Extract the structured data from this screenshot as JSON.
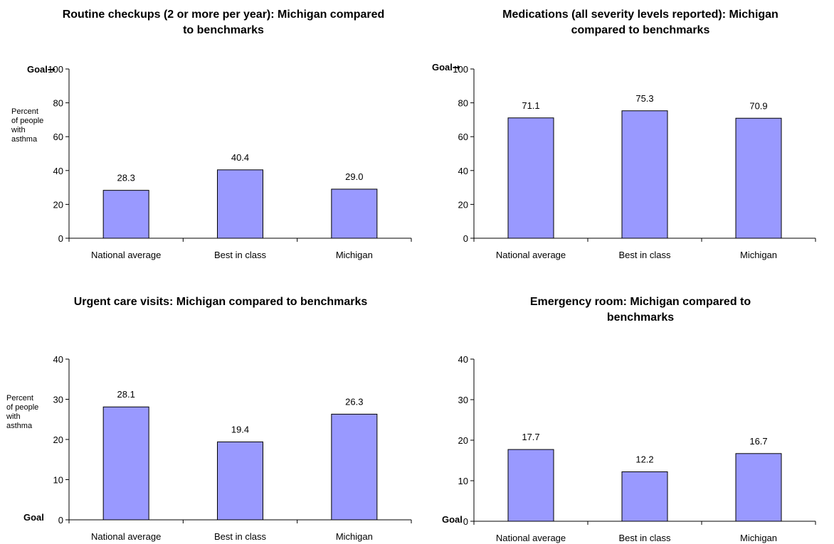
{
  "colors": {
    "bar_fill": "#9999ff",
    "bar_stroke": "#000000",
    "axis": "#000000"
  },
  "goal_arrow_icon": "right-arrow",
  "chart_data": [
    {
      "type": "bar",
      "title": "Routine checkups (2 or more per year): Michigan compared to benchmarks",
      "ylabel": "Percent of people with asthma",
      "goal_label": "Goal",
      "goal_value": 100,
      "categories": [
        "National average",
        "Best in class",
        "Michigan"
      ],
      "values": [
        28.3,
        40.4,
        29.0
      ],
      "value_labels": [
        "28.3",
        "40.4",
        "29.0"
      ],
      "ylim": [
        0,
        100
      ],
      "yticks": [
        "0",
        "20",
        "40",
        "60",
        "80",
        "100"
      ],
      "grid": false,
      "legend": "none"
    },
    {
      "type": "bar",
      "title": "Medications (all severity levels reported): Michigan compared to benchmarks",
      "ylabel": "",
      "goal_label": "Goal",
      "goal_value": 100,
      "categories": [
        "National average",
        "Best in class",
        "Michigan"
      ],
      "values": [
        71.1,
        75.3,
        70.9
      ],
      "value_labels": [
        "71.1",
        "75.3",
        "70.9"
      ],
      "ylim": [
        0,
        100
      ],
      "yticks": [
        "0",
        "20",
        "40",
        "60",
        "80",
        "100"
      ],
      "grid": false,
      "legend": "none"
    },
    {
      "type": "bar",
      "title": "Urgent care visits: Michigan compared to benchmarks",
      "ylabel": "Percent of people with asthma",
      "goal_label": "Goal",
      "goal_value": 0,
      "categories": [
        "National average",
        "Best in class",
        "Michigan"
      ],
      "values": [
        28.1,
        19.4,
        26.3
      ],
      "value_labels": [
        "28.1",
        "19.4",
        "26.3"
      ],
      "ylim": [
        0,
        40
      ],
      "yticks": [
        "0",
        "10",
        "20",
        "30",
        "40"
      ],
      "grid": false,
      "legend": "none"
    },
    {
      "type": "bar",
      "title": "Emergency room: Michigan compared to benchmarks",
      "ylabel": "",
      "goal_label": "Goal",
      "goal_value": 0,
      "categories": [
        "National average",
        "Best in class",
        "Michigan"
      ],
      "values": [
        17.7,
        12.2,
        16.7
      ],
      "value_labels": [
        "17.7",
        "12.2",
        "16.7"
      ],
      "ylim": [
        0,
        40
      ],
      "yticks": [
        "0",
        "10",
        "20",
        "30",
        "40"
      ],
      "grid": false,
      "legend": "none"
    }
  ]
}
